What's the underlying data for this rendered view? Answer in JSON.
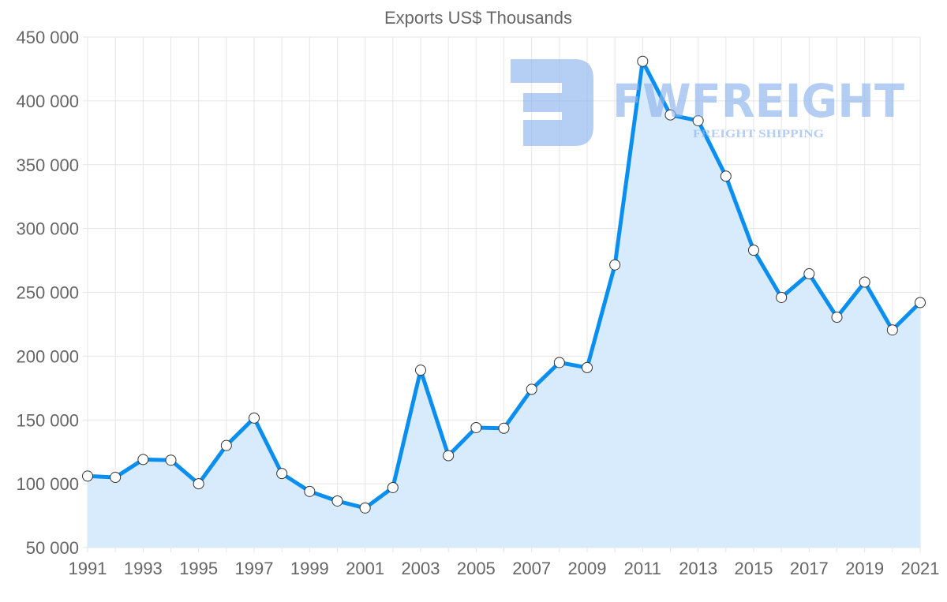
{
  "chart_data": {
    "type": "line",
    "title": "Exports US$ Thousands",
    "xlabel": "",
    "ylabel": "",
    "x": [
      1991,
      1992,
      1993,
      1994,
      1995,
      1996,
      1997,
      1998,
      1999,
      2000,
      2001,
      2002,
      2003,
      2004,
      2005,
      2006,
      2007,
      2008,
      2009,
      2010,
      2011,
      2012,
      2013,
      2014,
      2015,
      2016,
      2017,
      2018,
      2019,
      2020,
      2021
    ],
    "series": [
      {
        "name": "Exports US$ Thousands",
        "values": [
          106000,
          105000,
          119000,
          118500,
          100000,
          130000,
          151500,
          108000,
          94000,
          86500,
          81000,
          97000,
          189000,
          122000,
          144000,
          143500,
          174000,
          195000,
          191000,
          271500,
          431000,
          389000,
          384500,
          341000,
          283000,
          246000,
          264500,
          230500,
          258000,
          220500,
          242000
        ]
      }
    ],
    "ylim": [
      50000,
      450000
    ],
    "yticks": [
      50000,
      100000,
      150000,
      200000,
      250000,
      300000,
      350000,
      400000,
      450000
    ],
    "ytick_labels": [
      "50 000",
      "100 000",
      "150 000",
      "200 000",
      "250 000",
      "300 000",
      "350 000",
      "400 000",
      "450 000"
    ],
    "xtick_labels": [
      "1991",
      "1993",
      "1995",
      "1997",
      "1999",
      "2001",
      "2003",
      "2005",
      "2007",
      "2009",
      "2011",
      "2013",
      "2015",
      "2017",
      "2019",
      "2021"
    ],
    "grid": true,
    "fill": true,
    "colors": {
      "line": "#0a8ff0",
      "fill": "#d8ebfc",
      "grid": "#e5e5e5",
      "text": "#666666",
      "watermark": "#8db4ee"
    }
  },
  "watermark": {
    "brand": "FWFREIGHT",
    "tagline": "FREIGHT SHIPPING"
  }
}
